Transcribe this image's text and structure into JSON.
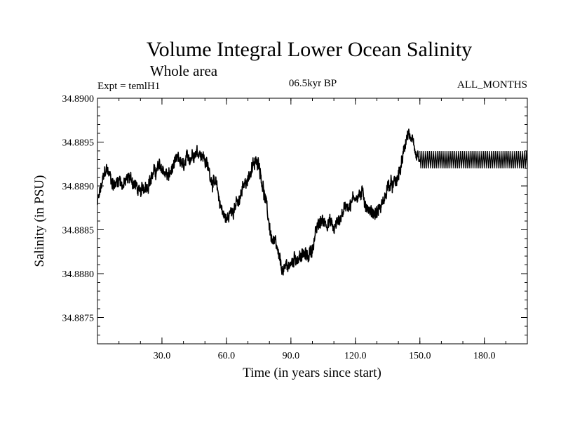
{
  "chart_data": {
    "type": "line",
    "title": "Volume Integral Lower Ocean Salinity",
    "subtitle": "Whole area",
    "annotation_left": "Expt = temlH1",
    "annotation_center": "06.5kyr BP",
    "annotation_right": "ALL_MONTHS",
    "xlabel": "Time (in years since start)",
    "ylabel": "Salinity (in PSU)",
    "xlim": [
      0,
      200
    ],
    "ylim": [
      34.8872,
      34.89
    ],
    "x_ticks": [
      30,
      60,
      90,
      120,
      150,
      180
    ],
    "x_tick_labels": [
      "30.0",
      "60.0",
      "90.0",
      "120.0",
      "150.0",
      "180.0"
    ],
    "y_ticks": [
      34.89,
      34.8895,
      34.889,
      34.8885,
      34.888,
      34.8875
    ],
    "y_tick_labels": [
      "34.8900",
      "34.8895",
      "34.8890",
      "34.8885",
      "34.8880",
      "34.8875"
    ],
    "series": [
      {
        "name": "Salinity",
        "x": [
          0,
          2,
          4,
          6,
          8,
          10,
          12,
          15,
          18,
          20,
          22,
          25,
          28,
          30,
          33,
          35,
          38,
          40,
          42,
          45,
          48,
          50,
          53,
          55,
          57,
          60,
          62,
          64,
          66,
          68,
          70,
          72,
          75,
          77,
          79,
          81,
          83,
          85,
          87,
          88,
          90,
          92,
          95,
          98,
          100,
          102,
          104,
          106,
          108,
          110,
          112,
          114,
          116,
          118,
          120,
          123,
          125,
          127,
          130,
          133,
          135,
          138,
          140,
          142,
          144,
          145,
          146,
          148,
          150
        ],
        "values": [
          34.8888,
          34.889,
          34.8892,
          34.8891,
          34.889,
          34.8891,
          34.889,
          34.8891,
          34.889,
          34.8889,
          34.889,
          34.8891,
          34.8892,
          34.8892,
          34.8891,
          34.8892,
          34.8893,
          34.8892,
          34.8893,
          34.8894,
          34.8894,
          34.8893,
          34.8891,
          34.889,
          34.8888,
          34.8886,
          34.8887,
          34.8888,
          34.8888,
          34.889,
          34.8891,
          34.8892,
          34.8893,
          34.889,
          34.8887,
          34.8884,
          34.8883,
          34.8881,
          34.888,
          34.8881,
          34.8881,
          34.8882,
          34.8882,
          34.8882,
          34.8883,
          34.8885,
          34.8886,
          34.8886,
          34.8886,
          34.8885,
          34.8886,
          34.8887,
          34.8888,
          34.8888,
          34.8889,
          34.8889,
          34.8888,
          34.8887,
          34.8887,
          34.8888,
          34.889,
          34.889,
          34.8891,
          34.8893,
          34.8896,
          34.8896,
          34.8895,
          34.8893,
          34.8893
        ],
        "steady_state": {
          "x_start": 150,
          "x_end": 200,
          "low": 34.8892,
          "high": 34.8894
        }
      }
    ]
  }
}
